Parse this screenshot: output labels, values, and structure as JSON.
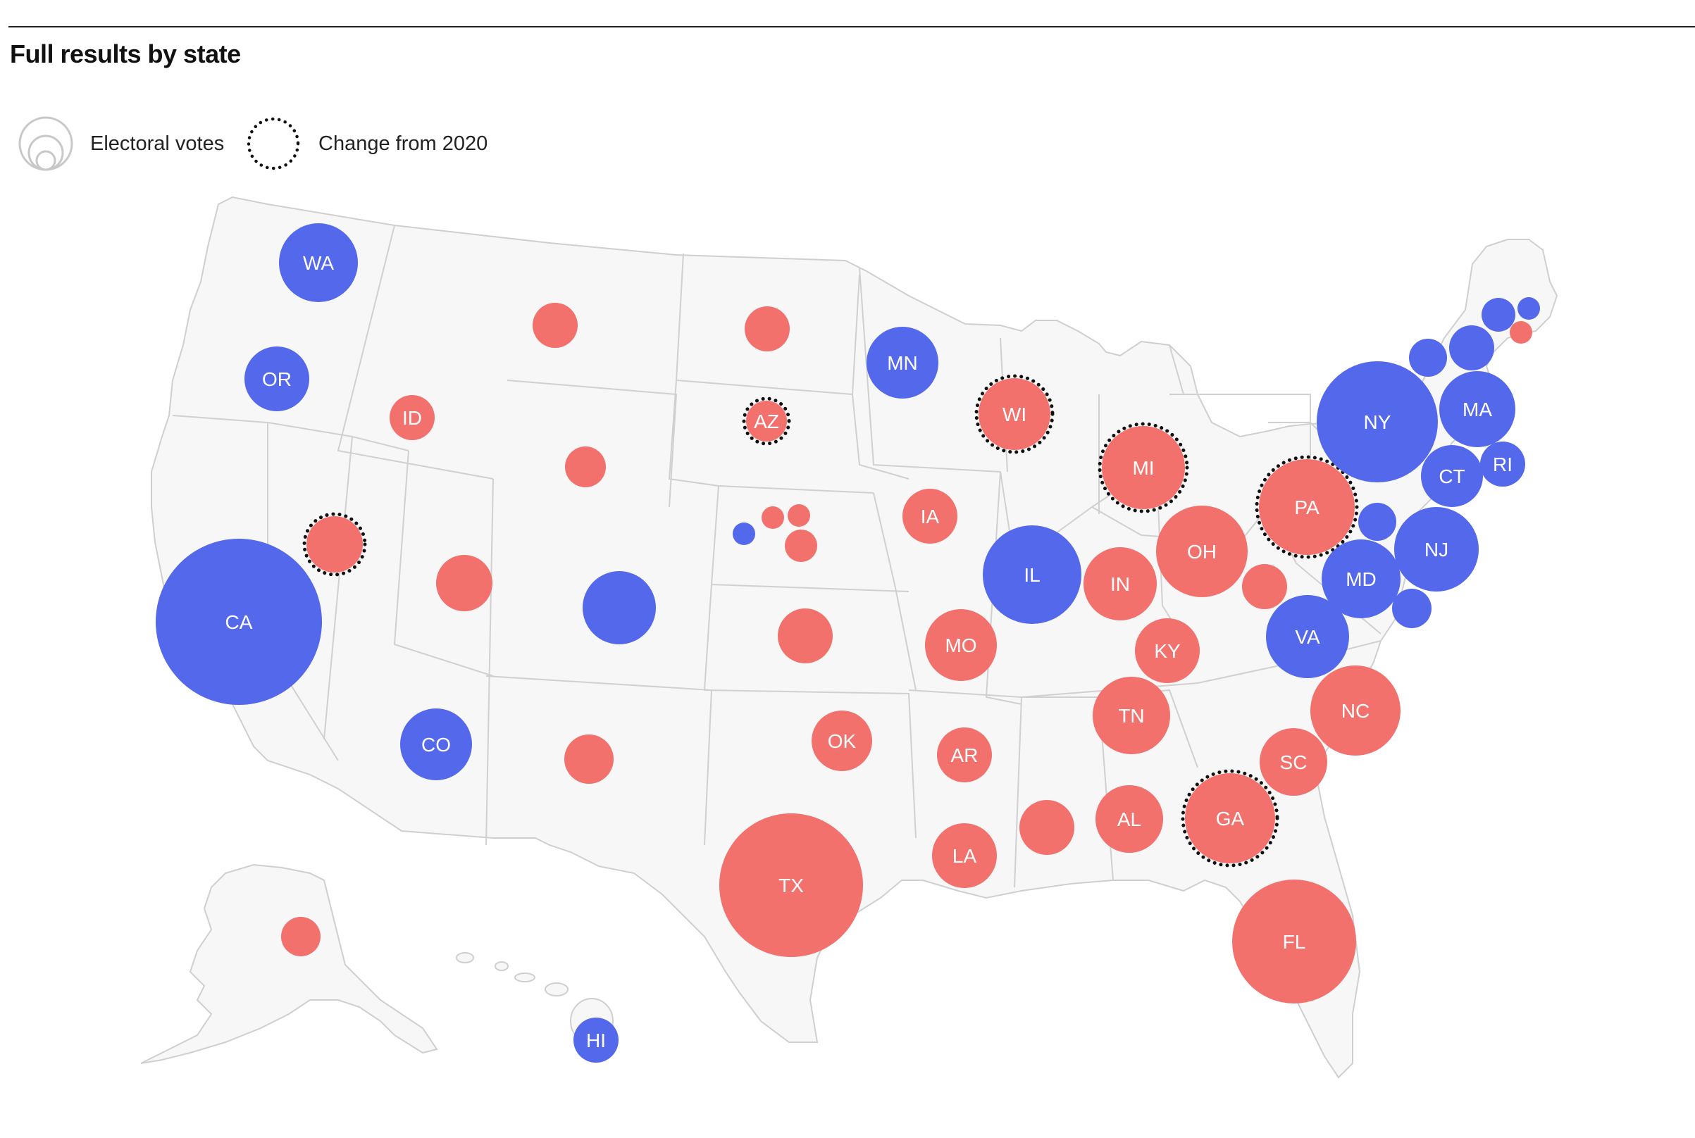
{
  "title": "Full results by state",
  "legend": {
    "electoral_votes": "Electoral votes",
    "change_from_2020": "Change from 2020"
  },
  "colors": {
    "republican": "#f2716c",
    "democrat": "#5468ec",
    "land": "#f7f7f7",
    "border": "#cfcfcf",
    "changed_outline": "#111111"
  },
  "states": [
    {
      "label": "WA",
      "party": "democrat",
      "changed": false
    },
    {
      "label": "OR",
      "party": "democrat",
      "changed": false
    },
    {
      "label": "CA",
      "party": "democrat",
      "changed": false
    },
    {
      "label": "",
      "party": "republican",
      "changed": true
    },
    {
      "label": "ID",
      "party": "republican",
      "changed": false
    },
    {
      "label": "",
      "party": "republican",
      "changed": false
    },
    {
      "label": "",
      "party": "republican",
      "changed": false
    },
    {
      "label": "",
      "party": "republican",
      "changed": false
    },
    {
      "label": "AZ",
      "party": "republican",
      "changed": true
    },
    {
      "label": "CO",
      "party": "democrat",
      "changed": false
    },
    {
      "label": "",
      "party": "democrat",
      "changed": false
    },
    {
      "label": "",
      "party": "republican",
      "changed": false
    },
    {
      "label": "",
      "party": "republican",
      "changed": false
    },
    {
      "label": "",
      "party": "republican",
      "changed": false
    },
    {
      "label": "",
      "party": "democrat",
      "changed": false
    },
    {
      "label": "",
      "party": "republican",
      "changed": false
    },
    {
      "label": "",
      "party": "republican",
      "changed": false
    },
    {
      "label": "",
      "party": "republican",
      "changed": false
    },
    {
      "label": "OK",
      "party": "republican",
      "changed": false
    },
    {
      "label": "TX",
      "party": "republican",
      "changed": false
    },
    {
      "label": "MN",
      "party": "democrat",
      "changed": false
    },
    {
      "label": "IA",
      "party": "republican",
      "changed": false
    },
    {
      "label": "MO",
      "party": "republican",
      "changed": false
    },
    {
      "label": "AR",
      "party": "republican",
      "changed": false
    },
    {
      "label": "LA",
      "party": "republican",
      "changed": false
    },
    {
      "label": "WI",
      "party": "republican",
      "changed": true
    },
    {
      "label": "IL",
      "party": "democrat",
      "changed": false
    },
    {
      "label": "MI",
      "party": "republican",
      "changed": true
    },
    {
      "label": "IN",
      "party": "republican",
      "changed": false
    },
    {
      "label": "OH",
      "party": "republican",
      "changed": false
    },
    {
      "label": "KY",
      "party": "republican",
      "changed": false
    },
    {
      "label": "TN",
      "party": "republican",
      "changed": false
    },
    {
      "label": "",
      "party": "republican",
      "changed": false
    },
    {
      "label": "AL",
      "party": "republican",
      "changed": false
    },
    {
      "label": "GA",
      "party": "republican",
      "changed": true
    },
    {
      "label": "FL",
      "party": "republican",
      "changed": false
    },
    {
      "label": "SC",
      "party": "republican",
      "changed": false
    },
    {
      "label": "NC",
      "party": "republican",
      "changed": false
    },
    {
      "label": "VA",
      "party": "democrat",
      "changed": false
    },
    {
      "label": "",
      "party": "republican",
      "changed": false
    },
    {
      "label": "PA",
      "party": "republican",
      "changed": true
    },
    {
      "label": "NY",
      "party": "democrat",
      "changed": false
    },
    {
      "label": "MD",
      "party": "democrat",
      "changed": false
    },
    {
      "label": "",
      "party": "democrat",
      "changed": false
    },
    {
      "label": "NJ",
      "party": "democrat",
      "changed": false
    },
    {
      "label": "",
      "party": "democrat",
      "changed": false
    },
    {
      "label": "CT",
      "party": "democrat",
      "changed": false
    },
    {
      "label": "RI",
      "party": "democrat",
      "changed": false
    },
    {
      "label": "MA",
      "party": "democrat",
      "changed": false
    },
    {
      "label": "",
      "party": "democrat",
      "changed": false
    },
    {
      "label": "",
      "party": "democrat",
      "changed": false
    },
    {
      "label": "",
      "party": "democrat",
      "changed": false
    },
    {
      "label": "",
      "party": "democrat",
      "changed": false
    },
    {
      "label": "",
      "party": "republican",
      "changed": false
    },
    {
      "label": "",
      "party": "republican",
      "changed": false
    },
    {
      "label": "HI",
      "party": "democrat",
      "changed": false
    }
  ]
}
